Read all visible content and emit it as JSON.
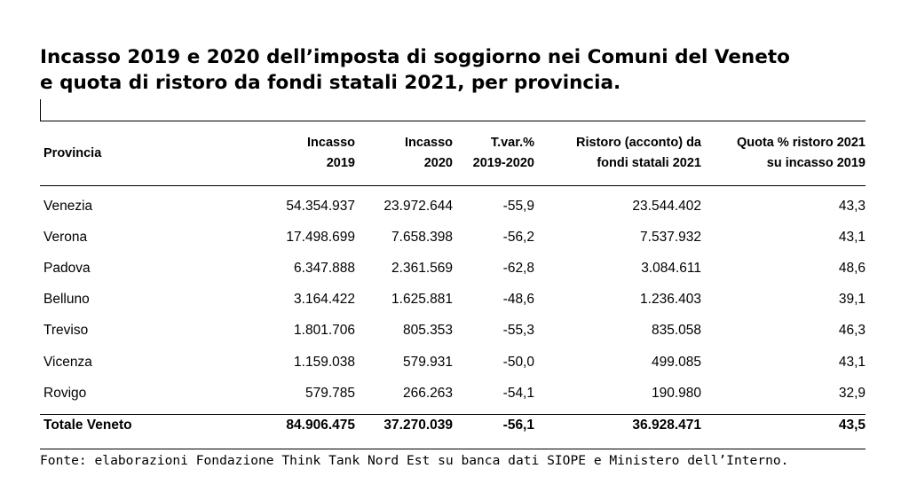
{
  "title": {
    "line1": "Incasso 2019 e 2020 dell’imposta di soggiorno nei Comuni del Veneto",
    "line2": "e quota di ristoro da fondi statali 2021, per provincia."
  },
  "table": {
    "headers": [
      {
        "line1": "Provincia",
        "line2": ""
      },
      {
        "line1": "Incasso",
        "line2": "2019"
      },
      {
        "line1": "Incasso",
        "line2": "2020"
      },
      {
        "line1": "T.var.%",
        "line2": "2019-2020"
      },
      {
        "line1": "Ristoro (acconto) da",
        "line2": "fondi statali 2021"
      },
      {
        "line1": "Quota % ristoro 2021",
        "line2": "su incasso 2019"
      }
    ],
    "rows": [
      [
        "Venezia",
        "54.354.937",
        "23.972.644",
        "-55,9",
        "23.544.402",
        "43,3"
      ],
      [
        "Verona",
        "17.498.699",
        "7.658.398",
        "-56,2",
        "7.537.932",
        "43,1"
      ],
      [
        "Padova",
        "6.347.888",
        "2.361.569",
        "-62,8",
        "3.084.611",
        "48,6"
      ],
      [
        "Belluno",
        "3.164.422",
        "1.625.881",
        "-48,6",
        "1.236.403",
        "39,1"
      ],
      [
        "Treviso",
        "1.801.706",
        "805.353",
        "-55,3",
        "835.058",
        "46,3"
      ],
      [
        "Vicenza",
        "1.159.038",
        "579.931",
        "-50,0",
        "499.085",
        "43,1"
      ],
      [
        "Rovigo",
        "579.785",
        "266.263",
        "-54,1",
        "190.980",
        "32,9"
      ]
    ],
    "total": [
      "Totale Veneto",
      "84.906.475",
      "37.270.039",
      "-56,1",
      "36.928.471",
      "43,5"
    ]
  },
  "source": "Fonte: elaborazioni Fondazione Think Tank Nord Est su banca dati SIOPE e Ministero dell’Interno."
}
